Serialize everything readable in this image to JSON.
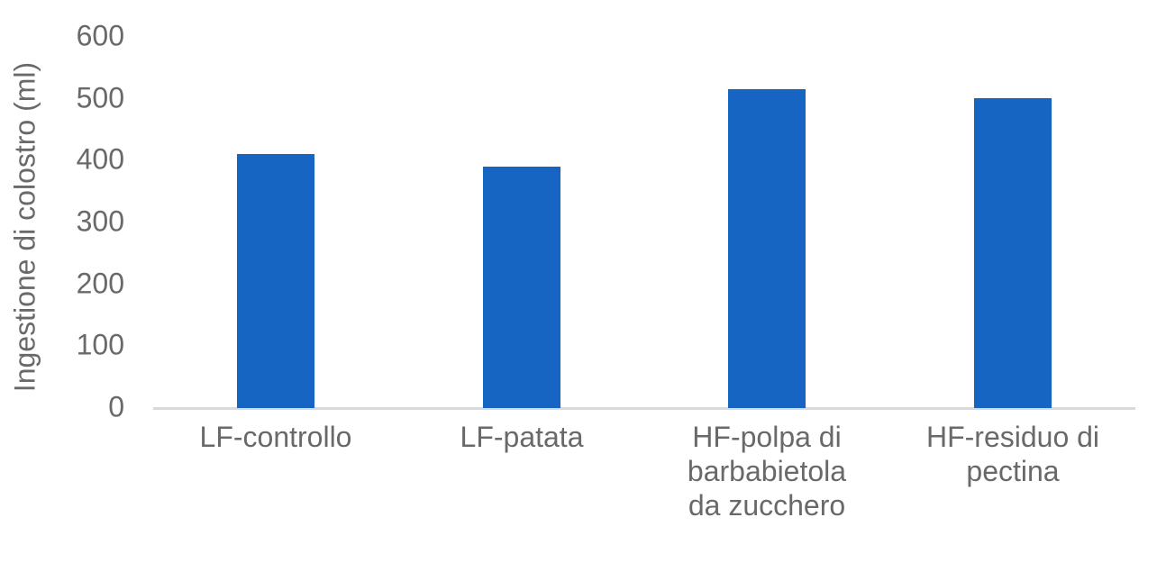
{
  "chart_data": {
    "type": "bar",
    "title": "",
    "xlabel": "",
    "ylabel": "Ingestione di colostro (ml)",
    "ylim": [
      0,
      600
    ],
    "yticks": [
      0,
      100,
      200,
      300,
      400,
      500,
      600
    ],
    "categories": [
      "LF-controllo",
      "LF-patata",
      "HF-polpa di barbabietola da zucchero",
      "HF-residuo di pectina"
    ],
    "category_lines": [
      [
        "LF-controllo"
      ],
      [
        "LF-patata"
      ],
      [
        "HF-polpa di",
        "barbabietola",
        "da zucchero"
      ],
      [
        "HF-residuo di",
        "pectina"
      ]
    ],
    "values": [
      410,
      390,
      515,
      500
    ],
    "bar_color": "#1765C3",
    "axis_line_color": "#D9D9D9",
    "text_color": "#696969",
    "background_color": "#FFFFFF",
    "grid": false,
    "legend": false
  }
}
